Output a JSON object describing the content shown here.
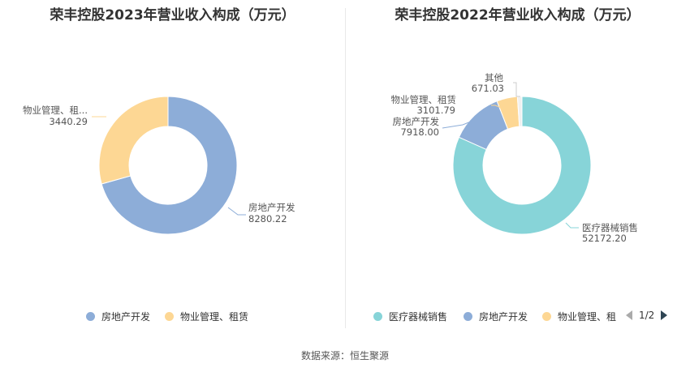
{
  "chart_data": [
    {
      "type": "pie",
      "title": "荣丰控股2023年营业收入构成（万元）",
      "categories": [
        "房地产开发",
        "物业管理、租赁"
      ],
      "values": [
        8280.22,
        3440.29
      ],
      "labels": [
        {
          "name": "房地产开发",
          "value": "8280.22"
        },
        {
          "name": "物业管理、租...",
          "value": "3440.29"
        }
      ],
      "colors": [
        "#8dadd8",
        "#fdd794"
      ],
      "legend": [
        {
          "name": "房地产开发",
          "color": "#8dadd8"
        },
        {
          "name": "物业管理、租赁",
          "color": "#fdd794"
        }
      ],
      "legend_position": "bottom"
    },
    {
      "type": "pie",
      "title": "荣丰控股2022年营业收入构成（万元）",
      "categories": [
        "医疗器械销售",
        "房地产开发",
        "物业管理、租赁",
        "其他"
      ],
      "values": [
        52172.2,
        7918.0,
        3101.79,
        671.03
      ],
      "labels": [
        {
          "name": "医疗器械销售",
          "value": "52172.20"
        },
        {
          "name": "房地产开发",
          "value": "7918.00"
        },
        {
          "name": "物业管理、租赁",
          "value": "3101.79"
        },
        {
          "name": "其他",
          "value": "671.03"
        }
      ],
      "colors": [
        "#87d4d8",
        "#8dadd8",
        "#fdd794",
        "#f0f0f0"
      ],
      "legend": [
        {
          "name": "医疗器械销售",
          "color": "#87d4d8"
        },
        {
          "name": "房地产开发",
          "color": "#8dadd8"
        },
        {
          "name": "物业管理、租",
          "color": "#fdd794"
        }
      ],
      "legend_position": "bottom",
      "pager": "1/2"
    }
  ],
  "footer": {
    "source": "数据来源：恒生聚源"
  }
}
